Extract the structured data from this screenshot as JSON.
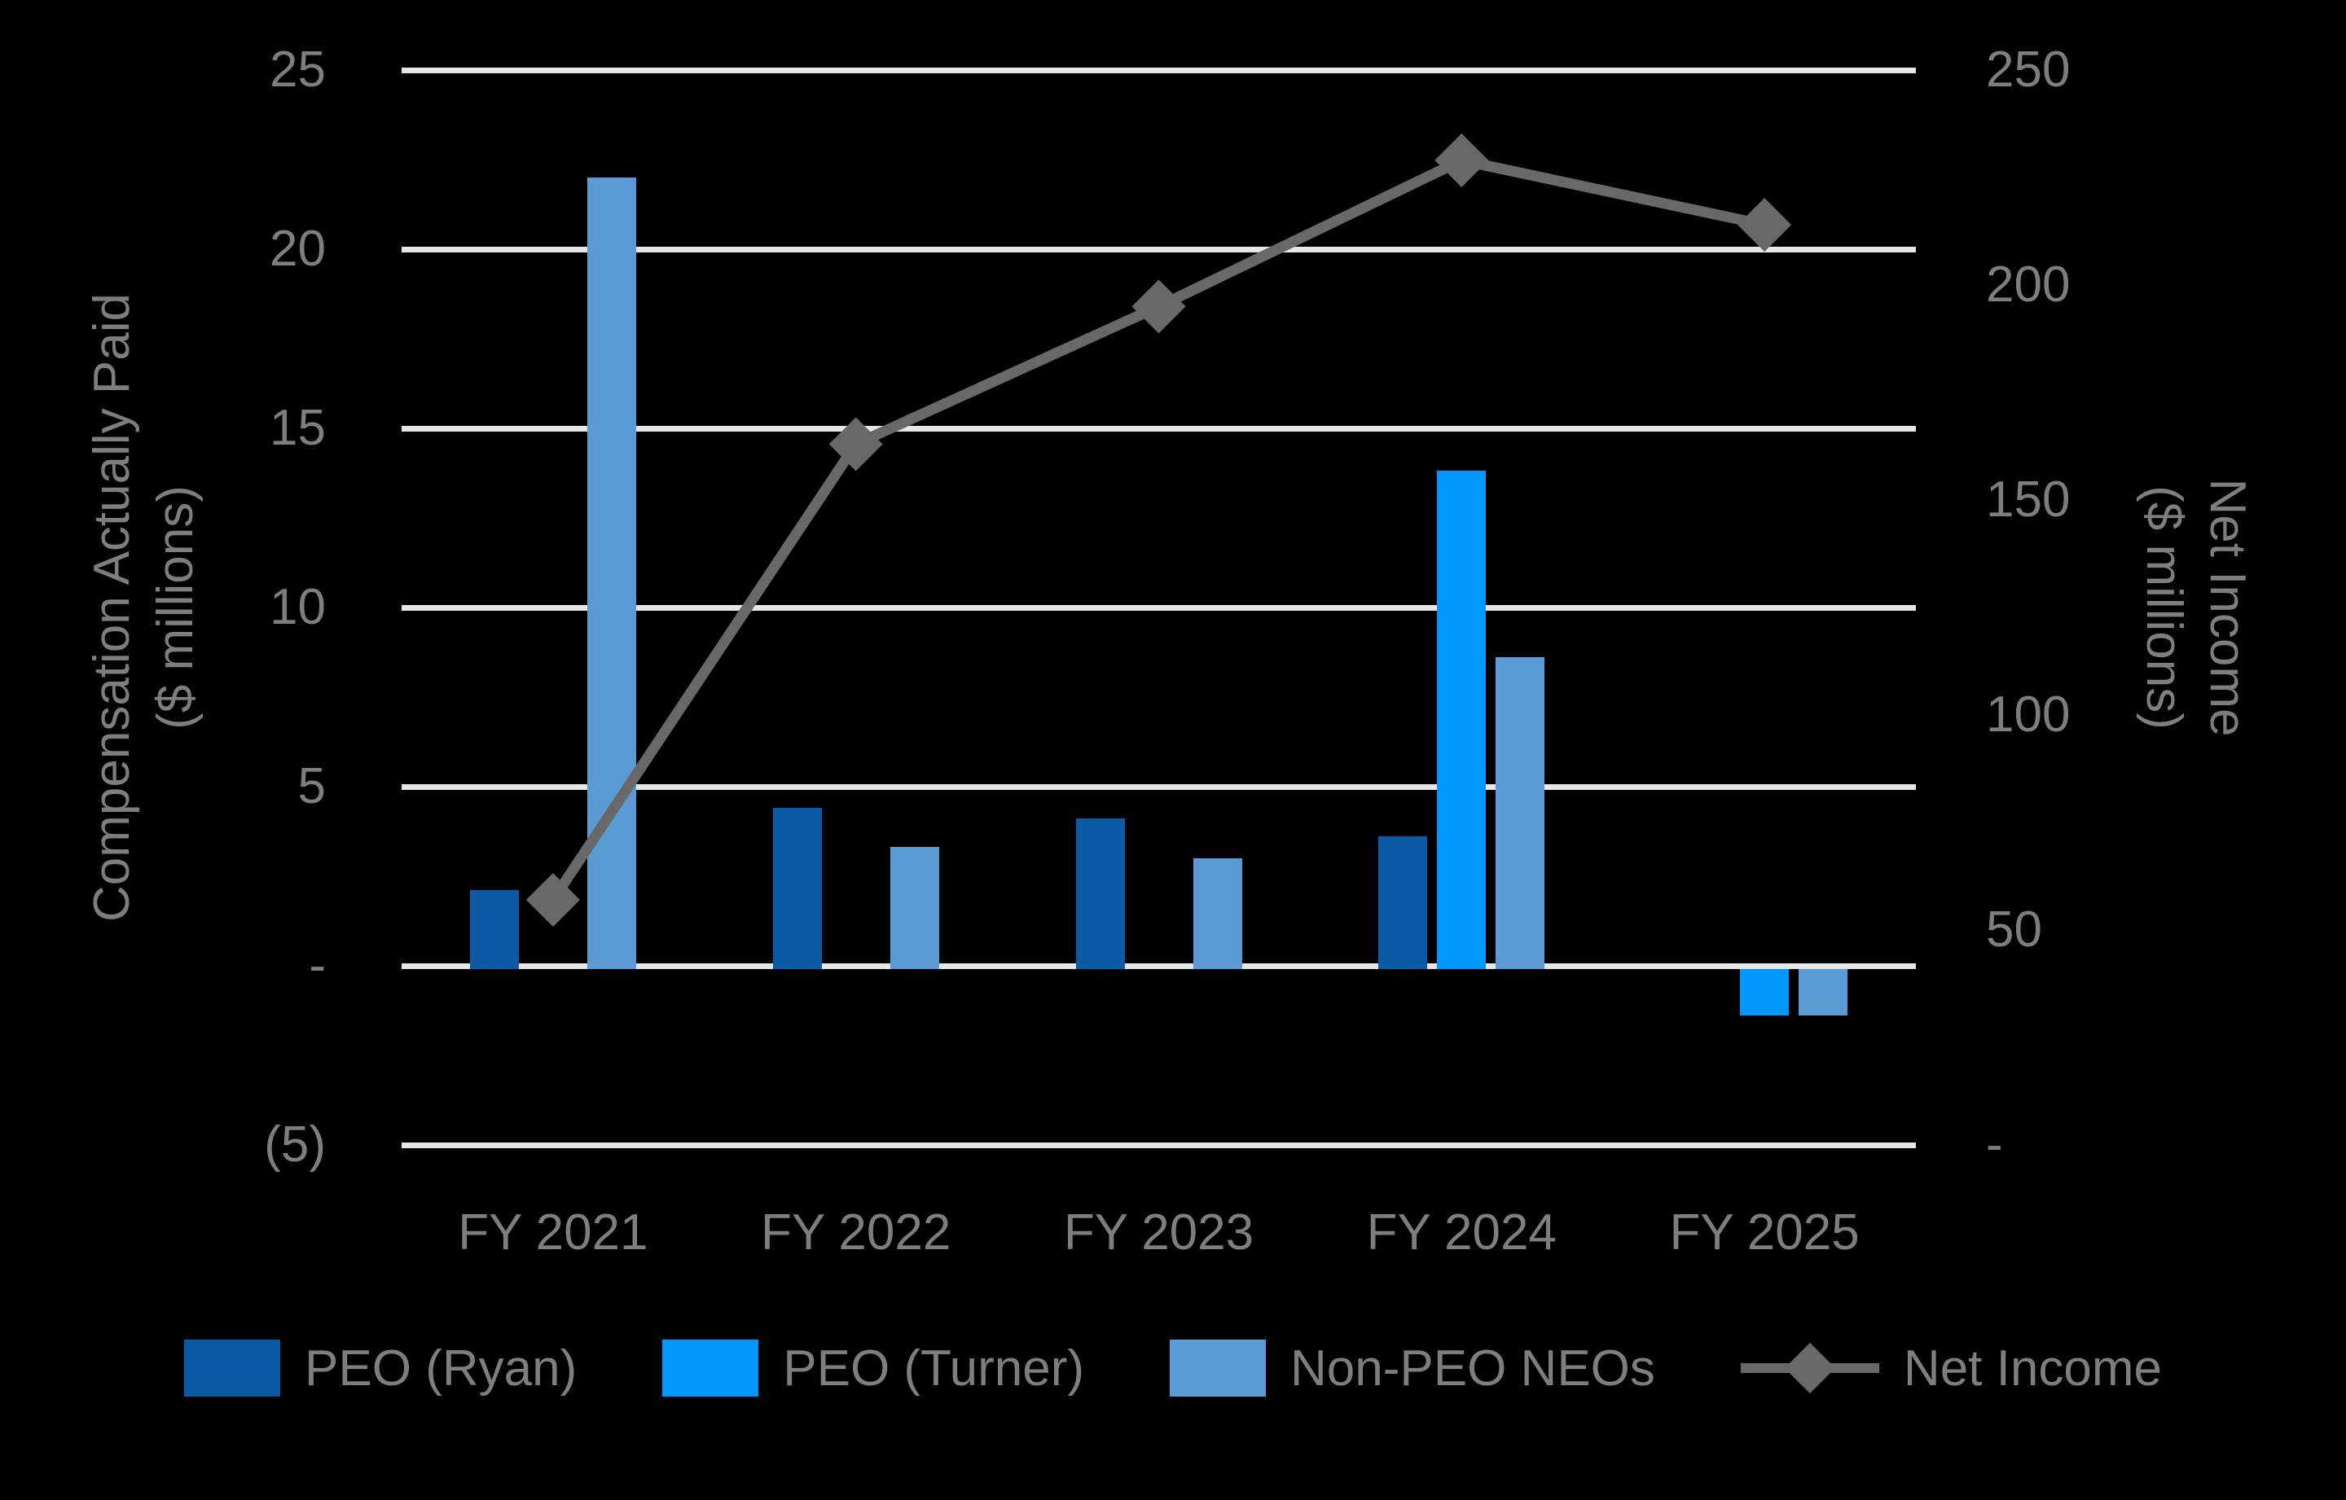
{
  "background_color": "#000000",
  "chart_data": {
    "type": "bar+line combo",
    "title": "",
    "categories": [
      "FY 2021",
      "FY 2022",
      "FY 2023",
      "FY 2024",
      "FY 2025"
    ],
    "series": [
      {
        "name": "PEO (Ryan)",
        "type": "bar",
        "axis": "left",
        "color": "#0A5AA6",
        "values": [
          2.2,
          4.5,
          4.2,
          3.7,
          null
        ]
      },
      {
        "name": "PEO (Turner)",
        "type": "bar",
        "axis": "left",
        "color": "#0098FF",
        "values": [
          null,
          null,
          null,
          13.9,
          -1.3
        ]
      },
      {
        "name": "Non-PEO NEOs",
        "type": "bar",
        "axis": "left",
        "color": "#5B9BD5",
        "values": [
          22.1,
          3.4,
          3.1,
          8.7,
          -1.3
        ]
      },
      {
        "name": "Net Income",
        "type": "line",
        "axis": "right",
        "color": "#686868",
        "values": [
          57,
          163,
          195,
          229,
          214
        ]
      }
    ],
    "left_axis": {
      "title_lines": [
        "Compensation Actually Paid",
        "($ millions)"
      ],
      "ticks": [
        "25",
        "20",
        "15",
        "10",
        "5",
        "-",
        "(5)"
      ],
      "min": -5,
      "max": 25
    },
    "right_axis": {
      "title_lines": [
        "Net Income",
        "($ millions)"
      ],
      "ticks": [
        "250",
        "200",
        "150",
        "100",
        "50",
        "-"
      ],
      "min": 0,
      "max": 250
    },
    "grid": "horizontal",
    "gridline_color": "#E7E7E7",
    "text_color": "#7E7E7E",
    "legend": {
      "position": "bottom",
      "items": [
        {
          "label": "PEO (Ryan)",
          "swatch": "bar",
          "color": "#0A5AA6"
        },
        {
          "label": "PEO (Turner)",
          "swatch": "bar",
          "color": "#0098FF"
        },
        {
          "label": "Non-PEO NEOs",
          "swatch": "bar",
          "color": "#5B9BD5"
        },
        {
          "label": "Net Income",
          "swatch": "line-diamond",
          "color": "#686868"
        }
      ]
    }
  }
}
